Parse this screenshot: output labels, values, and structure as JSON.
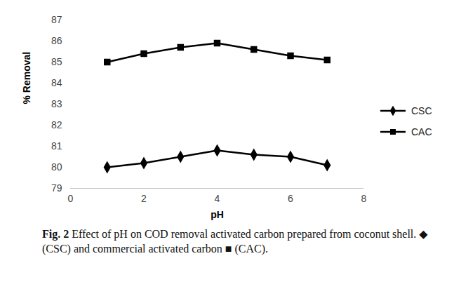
{
  "chart_data": {
    "type": "line",
    "title": "Fig. 2",
    "caption": "Effect of pH on COD removal activated carbon prepared from coconut shell. ◆ (CSC) and commercial activated carbon ■ (CAC).",
    "x_label": "pH",
    "y_label": "% Removal",
    "x": [
      1,
      2,
      3,
      4,
      5,
      6,
      7
    ],
    "series": [
      {
        "name": "CSC",
        "color": "#000000",
        "marker": "diamond",
        "values": [
          80.0,
          80.2,
          80.5,
          80.8,
          80.6,
          80.5,
          80.1
        ]
      },
      {
        "name": "CAC",
        "color": "#000000",
        "marker": "square",
        "values": [
          85.0,
          85.4,
          85.7,
          85.9,
          85.6,
          85.3,
          85.1
        ]
      }
    ],
    "xlim": [
      0,
      8
    ],
    "xticks": [
      0,
      2,
      4,
      6,
      8
    ],
    "ylim": [
      79,
      87
    ],
    "yticks": [
      79,
      80,
      81,
      82,
      83,
      84,
      85,
      86,
      87
    ],
    "grid": false,
    "legend": "right"
  }
}
